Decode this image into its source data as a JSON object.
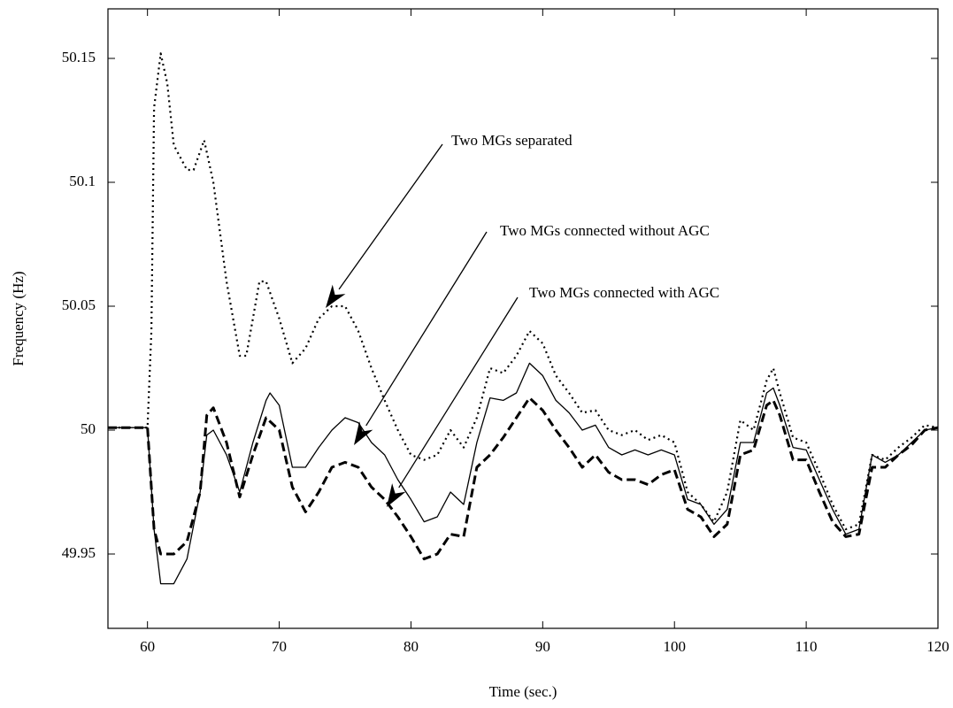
{
  "chart_data": {
    "type": "line",
    "xlabel": "Time (sec.)",
    "ylabel": "Frequency (Hz)",
    "xlim": [
      57,
      120
    ],
    "ylim": [
      49.92,
      50.17
    ],
    "xticks": [
      60,
      70,
      80,
      90,
      100,
      110,
      120
    ],
    "yticks": [
      49.95,
      50,
      50.05,
      50.1,
      50.15
    ],
    "series": [
      {
        "name": "Two MGs separated",
        "color": "#000000",
        "style": "dotted",
        "x": [
          57,
          60,
          60.3,
          60.5,
          61,
          61.5,
          62,
          63,
          63.5,
          64.3,
          65,
          66,
          67,
          67.5,
          68,
          68.5,
          69,
          70,
          71,
          72,
          73,
          74,
          75,
          76,
          77,
          78,
          79,
          80,
          81,
          82,
          83,
          84,
          85,
          86,
          87,
          88,
          89,
          90,
          91,
          92,
          93,
          94,
          95,
          96,
          97,
          98,
          99,
          100,
          101,
          102,
          103,
          104,
          105,
          106,
          107,
          107.5,
          108,
          109,
          110,
          111,
          112,
          113,
          114,
          115,
          116,
          117,
          118,
          119,
          120
        ],
        "values": [
          50.001,
          50.001,
          50.04,
          50.13,
          50.152,
          50.14,
          50.115,
          50.105,
          50.105,
          50.117,
          50.1,
          50.06,
          50.03,
          50.03,
          50.045,
          50.06,
          50.06,
          50.045,
          50.027,
          50.033,
          50.045,
          50.05,
          50.05,
          50.04,
          50.025,
          50.012,
          50.0,
          49.99,
          49.988,
          49.99,
          50.0,
          49.993,
          50.005,
          50.025,
          50.023,
          50.03,
          50.04,
          50.035,
          50.022,
          50.015,
          50.007,
          50.008,
          50.0,
          49.998,
          50.0,
          49.996,
          49.998,
          49.995,
          49.975,
          49.97,
          49.963,
          49.975,
          50.004,
          50.0,
          50.02,
          50.025,
          50.015,
          49.997,
          49.995,
          49.983,
          49.97,
          49.96,
          49.962,
          49.99,
          49.988,
          49.993,
          49.997,
          50.002,
          50.001
        ]
      },
      {
        "name": "Two MGs connected without AGC",
        "color": "#000000",
        "style": "solid",
        "x": [
          57,
          60,
          60.5,
          61,
          62,
          63,
          64,
          64.5,
          65,
          66,
          67,
          68,
          69,
          69.3,
          70,
          71,
          72,
          73,
          74,
          75,
          76,
          77,
          78,
          79,
          80,
          81,
          82,
          83,
          84,
          85,
          86,
          87,
          88,
          89,
          90,
          91,
          92,
          93,
          94,
          95,
          96,
          97,
          98,
          99,
          100,
          101,
          102,
          103,
          104,
          105,
          106,
          107,
          107.5,
          108,
          109,
          110,
          111,
          112,
          113,
          114,
          115,
          116,
          117,
          118,
          119,
          120
        ],
        "values": [
          50.001,
          50.001,
          49.96,
          49.938,
          49.938,
          49.948,
          49.975,
          49.998,
          50.0,
          49.99,
          49.975,
          49.995,
          50.012,
          50.015,
          50.01,
          49.985,
          49.985,
          49.993,
          50.0,
          50.005,
          50.003,
          49.995,
          49.99,
          49.98,
          49.972,
          49.963,
          49.965,
          49.975,
          49.97,
          49.995,
          50.013,
          50.012,
          50.015,
          50.027,
          50.022,
          50.012,
          50.007,
          50.0,
          50.002,
          49.993,
          49.99,
          49.992,
          49.99,
          49.992,
          49.99,
          49.972,
          49.97,
          49.962,
          49.968,
          49.995,
          49.995,
          50.015,
          50.017,
          50.01,
          49.993,
          49.992,
          49.98,
          49.968,
          49.958,
          49.96,
          49.99,
          49.987,
          49.99,
          49.995,
          50.0,
          50.001
        ]
      },
      {
        "name": "Two MGs connected with AGC",
        "color": "#000000",
        "style": "dashed",
        "x": [
          57,
          60,
          60.5,
          61,
          62,
          63,
          64,
          64.5,
          65,
          66,
          67,
          68,
          69,
          70,
          71,
          72,
          73,
          74,
          75,
          76,
          77,
          78,
          79,
          80,
          81,
          82,
          83,
          84,
          85,
          86,
          87,
          88,
          89,
          90,
          91,
          92,
          93,
          94,
          95,
          96,
          97,
          98,
          99,
          100,
          101,
          102,
          103,
          104,
          105,
          106,
          107,
          107.5,
          108,
          109,
          110,
          111,
          112,
          113,
          114,
          115,
          116,
          117,
          118,
          119,
          120
        ],
        "values": [
          50.001,
          50.001,
          49.96,
          49.95,
          49.95,
          49.955,
          49.975,
          50.006,
          50.009,
          49.995,
          49.973,
          49.99,
          50.005,
          50.0,
          49.977,
          49.967,
          49.975,
          49.985,
          49.987,
          49.985,
          49.977,
          49.972,
          49.965,
          49.957,
          49.948,
          49.95,
          49.958,
          49.957,
          49.985,
          49.99,
          49.997,
          50.005,
          50.013,
          50.008,
          50.0,
          49.993,
          49.985,
          49.99,
          49.983,
          49.98,
          49.98,
          49.978,
          49.982,
          49.984,
          49.968,
          49.965,
          49.957,
          49.962,
          49.99,
          49.992,
          50.01,
          50.012,
          50.006,
          49.988,
          49.988,
          49.975,
          49.963,
          49.957,
          49.958,
          49.985,
          49.985,
          49.99,
          49.994,
          50.0,
          50.001
        ]
      }
    ]
  }
}
